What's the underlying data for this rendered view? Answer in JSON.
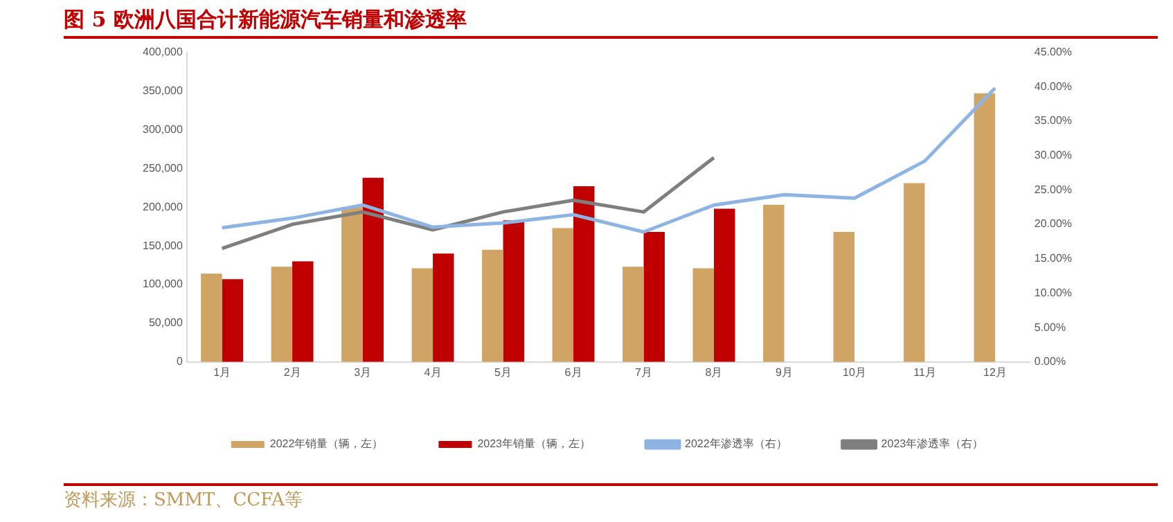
{
  "chart_data": {
    "type": "bar",
    "title": "图 5 欧洲八国合计新能源汽车销量和渗透率",
    "categories": [
      "1月",
      "2月",
      "3月",
      "4月",
      "5月",
      "6月",
      "7月",
      "8月",
      "9月",
      "10月",
      "11月",
      "12月"
    ],
    "series": [
      {
        "name": "2022年销量（辆，左）",
        "color": "#d0a465",
        "values": [
          114000,
          123000,
          200000,
          121000,
          145000,
          173000,
          123000,
          121000,
          203000,
          168000,
          231000,
          347000
        ]
      },
      {
        "name": "2023年销量（辆，左）",
        "color": "#c00000",
        "values": [
          107000,
          130000,
          238000,
          140000,
          183000,
          227000,
          168000,
          198000,
          null,
          null,
          null,
          null
        ]
      },
      {
        "name": "2022年渗透率（右）",
        "type": "line",
        "axis": "y2",
        "color": "#8db4e2",
        "values": [
          19.5,
          20.9,
          22.8,
          19.6,
          20.2,
          21.4,
          18.9,
          22.8,
          24.3,
          23.8,
          29.2,
          39.8
        ]
      },
      {
        "name": "2023年渗透率（右）",
        "type": "line",
        "axis": "y2",
        "color": "#7f7f7f",
        "values": [
          16.5,
          20.0,
          21.8,
          19.2,
          21.8,
          23.5,
          21.8,
          29.7,
          null,
          null,
          null,
          null
        ]
      }
    ],
    "ylim": [
      0,
      400000
    ],
    "yticks": [
      {
        "value": 0,
        "label": "0"
      },
      {
        "value": 50000,
        "label": "50,000"
      },
      {
        "value": 100000,
        "label": "100,000"
      },
      {
        "value": 150000,
        "label": "150,000"
      },
      {
        "value": 200000,
        "label": "200,000"
      },
      {
        "value": 250000,
        "label": "250,000"
      },
      {
        "value": 300000,
        "label": "300,000"
      },
      {
        "value": 350000,
        "label": "350,000"
      },
      {
        "value": 400000,
        "label": "400,000"
      }
    ],
    "y2lim": [
      0,
      45
    ],
    "y2ticks": [
      {
        "value": 0,
        "label": "0.00%"
      },
      {
        "value": 5,
        "label": "5.00%"
      },
      {
        "value": 10,
        "label": "10.00%"
      },
      {
        "value": 15,
        "label": "15.00%"
      },
      {
        "value": 20,
        "label": "20.00%"
      },
      {
        "value": 25,
        "label": "25.00%"
      },
      {
        "value": 30,
        "label": "30.00%"
      },
      {
        "value": 35,
        "label": "35.00%"
      },
      {
        "value": 40,
        "label": "40.00%"
      },
      {
        "value": 45,
        "label": "45.00%"
      }
    ],
    "legend": "bottom",
    "grid": false,
    "marker": "none",
    "annotations": [
      "资料来源：SMMT、CCFA等"
    ]
  }
}
